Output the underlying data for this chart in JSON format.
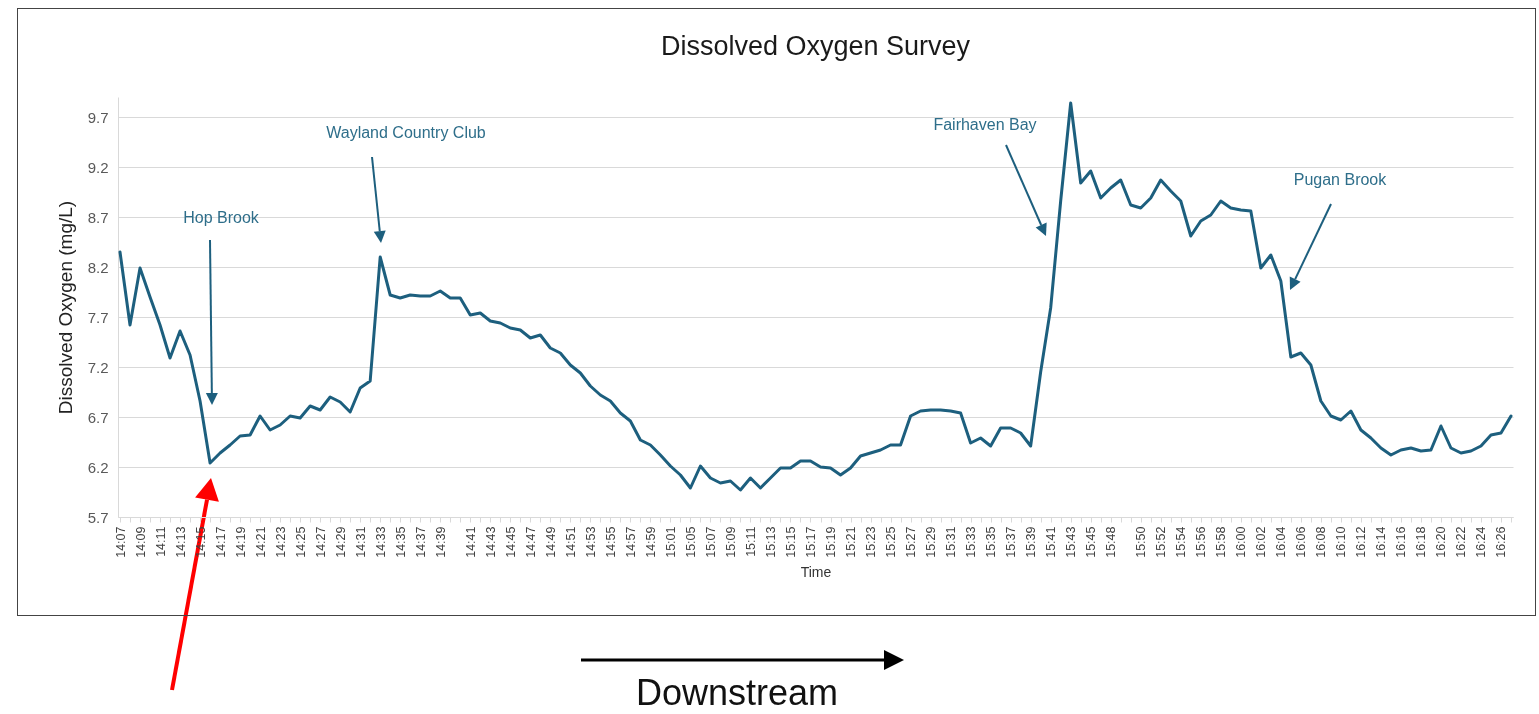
{
  "chart_data": {
    "type": "line",
    "title": "Dissolved Oxygen Survey",
    "xlabel": "Time",
    "ylabel": "Dissolved Oxygen (mg/L)",
    "categories": [
      "14:07",
      null,
      "14:09",
      null,
      "14:11",
      null,
      "14:13",
      null,
      "14:15",
      null,
      "14:17",
      null,
      "14:19",
      null,
      "14:21",
      null,
      "14:23",
      null,
      "14:25",
      null,
      "14:27",
      null,
      "14:29",
      null,
      "14:31",
      null,
      "14:33",
      null,
      "14:35",
      null,
      "14:37",
      null,
      "14:39",
      null,
      null,
      "14:41",
      null,
      "14:43",
      null,
      "14:45",
      null,
      "14:47",
      null,
      "14:49",
      null,
      "14:51",
      null,
      "14:53",
      null,
      "14:55",
      null,
      "14:57",
      null,
      "14:59",
      null,
      "15:01",
      null,
      "15:05",
      null,
      "15:07",
      null,
      "15:09",
      null,
      "15:11",
      null,
      "15:13",
      null,
      "15:15",
      null,
      "15:17",
      null,
      "15:19",
      null,
      "15:21",
      null,
      "15:23",
      null,
      "15:25",
      null,
      "15:27",
      null,
      "15:29",
      null,
      "15:31",
      null,
      "15:33",
      null,
      "15:35",
      null,
      "15:37",
      null,
      "15:39",
      null,
      "15:41",
      null,
      "15:43",
      null,
      "15:45",
      null,
      "15:48",
      null,
      null,
      "15:50",
      null,
      "15:52",
      null,
      "15:54",
      null,
      "15:56",
      null,
      "15:58",
      null,
      "16:00",
      null,
      "16:02",
      null,
      "16:04",
      null,
      "16:06",
      null,
      "16:08",
      null,
      "16:10",
      null,
      "16:12",
      null,
      "16:14",
      null,
      "16:16",
      null,
      "16:18",
      null,
      "16:20",
      null,
      "16:22",
      null,
      "16:24",
      null,
      "16:26",
      null
    ],
    "series": [
      {
        "color": "#1d5f7e",
        "values": [
          8.35,
          7.62,
          8.19,
          7.9,
          7.62,
          7.29,
          7.56,
          7.32,
          6.86,
          6.24,
          6.34,
          6.42,
          6.51,
          6.52,
          6.71,
          6.57,
          6.62,
          6.71,
          6.69,
          6.81,
          6.77,
          6.9,
          6.85,
          6.75,
          6.99,
          7.06,
          8.3,
          7.92,
          7.89,
          7.92,
          7.91,
          7.91,
          7.96,
          7.89,
          7.89,
          7.72,
          7.74,
          7.66,
          7.64,
          7.59,
          7.57,
          7.49,
          7.52,
          7.39,
          7.34,
          7.22,
          7.14,
          7.01,
          6.92,
          6.86,
          6.74,
          6.66,
          6.47,
          6.42,
          6.32,
          6.21,
          6.12,
          5.99,
          6.21,
          6.09,
          6.04,
          6.06,
          5.97,
          6.09,
          5.99,
          6.09,
          6.19,
          6.19,
          6.26,
          6.26,
          6.2,
          6.19,
          6.12,
          6.19,
          6.31,
          6.34,
          6.37,
          6.42,
          6.42,
          6.71,
          6.76,
          6.77,
          6.77,
          6.76,
          6.74,
          6.44,
          6.49,
          6.41,
          6.59,
          6.59,
          6.54,
          6.41,
          7.15,
          7.79,
          8.86,
          9.84,
          9.04,
          9.16,
          8.89,
          8.99,
          9.07,
          8.82,
          8.79,
          8.89,
          9.07,
          8.96,
          8.86,
          8.51,
          8.66,
          8.72,
          8.86,
          8.79,
          8.77,
          8.76,
          8.19,
          8.32,
          8.06,
          7.3,
          7.34,
          7.22,
          6.86,
          6.71,
          6.67,
          6.76,
          6.57,
          6.49,
          6.39,
          6.32,
          6.37,
          6.39,
          6.36,
          6.37,
          6.61,
          6.39,
          6.34,
          6.36,
          6.41,
          6.52,
          6.54,
          6.71
        ]
      }
    ],
    "ylim": [
      5.7,
      9.9
    ],
    "yticks": [
      5.7,
      6.2,
      6.7,
      7.2,
      7.7,
      8.2,
      8.7,
      9.2,
      9.7
    ],
    "grid": "y",
    "annotations": [
      "Hop Brook",
      "Wayland Country Club",
      "Fairhaven Bay",
      "Pugan Brook",
      "Downstream"
    ]
  }
}
